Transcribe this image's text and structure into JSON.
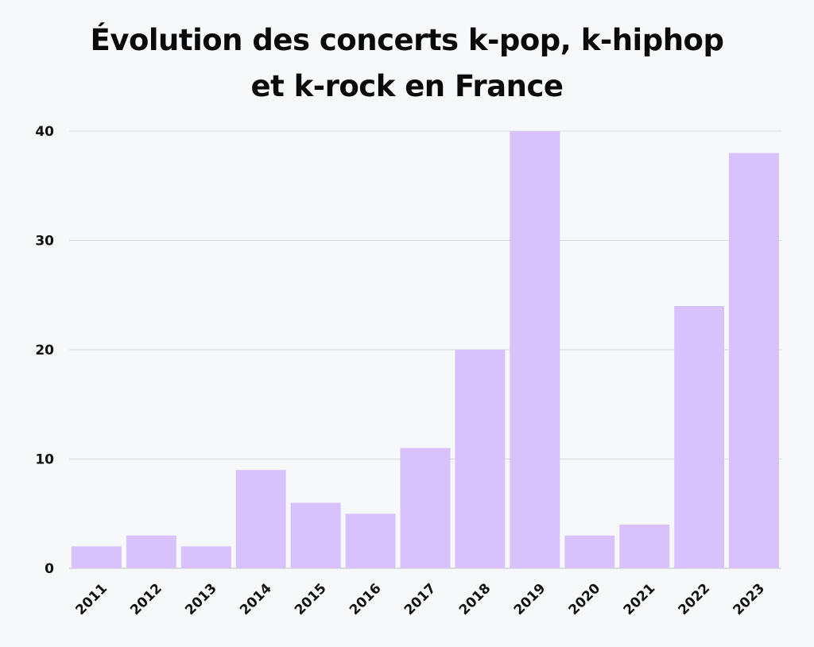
{
  "chart_data": {
    "type": "bar",
    "title_line1": "Évolution des concerts k-pop, k-hiphop",
    "title_line2": "et k-rock en France",
    "categories": [
      "2011",
      "2012",
      "2013",
      "2014",
      "2015",
      "2016",
      "2017",
      "2018",
      "2019",
      "2020",
      "2021",
      "2022",
      "2023"
    ],
    "values": [
      2,
      3,
      2,
      9,
      6,
      5,
      11,
      20,
      40,
      3,
      4,
      24,
      38
    ],
    "ylim": [
      0,
      40
    ],
    "yticks": [
      "0",
      "10",
      "20",
      "30",
      "40"
    ],
    "xlabel": "",
    "ylabel": "",
    "grid": true,
    "bar_color": "#d8c2fb"
  }
}
